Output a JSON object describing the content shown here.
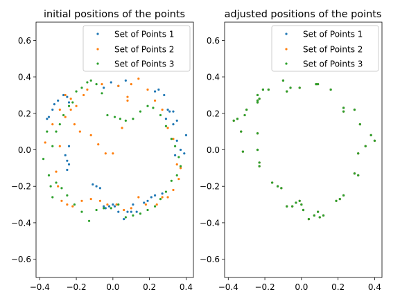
{
  "chart_data": [
    {
      "type": "scatter",
      "title": "initial positions of the points",
      "xlabel": "",
      "ylabel": "",
      "xlim": [
        -0.42,
        0.44
      ],
      "ylim": [
        -0.7,
        0.7
      ],
      "xticks": [
        "−0.4",
        "−0.2",
        "0.0",
        "0.2",
        "0.4"
      ],
      "yticks": [
        "−0.6",
        "−0.4",
        "−0.2",
        "0.0",
        "0.2",
        "0.4",
        "0.6"
      ],
      "xtick_values": [
        -0.4,
        -0.2,
        0.0,
        0.2,
        0.4
      ],
      "ytick_values": [
        -0.6,
        -0.4,
        -0.2,
        0.0,
        0.2,
        0.4,
        0.6
      ],
      "legend_position": "top-right",
      "series": [
        {
          "name": "Set of Points 1",
          "color": "#1f77b4",
          "x": [
            -0.36,
            -0.35,
            -0.33,
            -0.32,
            -0.3,
            -0.27,
            -0.25,
            -0.24,
            -0.26,
            -0.25,
            -0.24,
            -0.25,
            -0.24,
            -0.11,
            -0.09,
            -0.07,
            -0.05,
            -0.04,
            -0.02,
            0.0,
            0.01,
            0.03,
            0.06,
            0.08,
            0.1,
            0.11,
            0.13,
            0.17,
            0.19,
            0.21,
            0.23,
            0.27,
            0.29,
            0.31,
            0.33,
            0.35,
            0.37,
            0.39,
            0.4,
            0.3,
            0.33,
            0.35,
            0.34,
            0.28,
            0.25,
            0.23,
            -0.05,
            -0.01,
            0.03,
            0.07
          ],
          "y": [
            0.17,
            0.18,
            0.22,
            0.25,
            0.27,
            0.3,
            0.29,
            0.26,
            -0.03,
            -0.06,
            -0.08,
            -0.11,
            0.02,
            -0.19,
            -0.2,
            -0.21,
            -0.31,
            -0.32,
            -0.31,
            -0.3,
            -0.31,
            -0.34,
            -0.38,
            -0.34,
            -0.34,
            -0.3,
            -0.34,
            -0.29,
            -0.28,
            -0.26,
            -0.25,
            -0.24,
            0.17,
            0.21,
            0.21,
            0.16,
            0.0,
            -0.02,
            0.08,
            0.22,
            0.14,
            0.05,
            -0.03,
            0.3,
            0.33,
            0.32,
            0.34,
            0.37,
            0.35,
            0.38
          ]
        },
        {
          "name": "Set of Points 2",
          "color": "#ff7f0e",
          "x": [
            -0.37,
            -0.33,
            -0.29,
            -0.26,
            -0.23,
            -0.21,
            -0.18,
            -0.12,
            -0.08,
            -0.04,
            0.0,
            0.05,
            0.08,
            0.1,
            0.14,
            0.19,
            0.23,
            0.27,
            0.3,
            0.33,
            0.35,
            0.37,
            0.36,
            0.33,
            0.3,
            0.27,
            0.24,
            0.18,
            0.14,
            0.1,
            0.06,
            0.02,
            -0.03,
            -0.07,
            -0.12,
            -0.17,
            -0.22,
            -0.25,
            -0.28,
            -0.3,
            -0.31,
            -0.29,
            -0.26,
            -0.23,
            -0.2,
            -0.16,
            -0.14,
            -0.06,
            0.03,
            0.08
          ],
          "y": [
            0.04,
            0.14,
            0.22,
            0.3,
            0.28,
            0.14,
            0.1,
            0.08,
            0.03,
            -0.02,
            -0.02,
            0.12,
            0.29,
            0.36,
            0.39,
            0.33,
            0.27,
            0.22,
            0.12,
            0.06,
            -0.08,
            -0.1,
            -0.16,
            -0.22,
            -0.26,
            -0.26,
            -0.3,
            -0.3,
            -0.26,
            -0.32,
            -0.33,
            -0.3,
            -0.3,
            -0.28,
            -0.27,
            -0.28,
            -0.31,
            -0.3,
            -0.28,
            -0.2,
            -0.12,
            0.02,
            0.18,
            0.22,
            0.24,
            0.3,
            0.33,
            0.36,
            0.35,
            0.27
          ]
        },
        {
          "name": "Set of Points 3",
          "color": "#2ca02c",
          "x": [
            -0.38,
            -0.35,
            -0.33,
            -0.31,
            -0.29,
            -0.27,
            -0.24,
            -0.22,
            -0.2,
            -0.17,
            -0.14,
            -0.12,
            -0.09,
            -0.06,
            -0.03,
            0.01,
            0.04,
            0.07,
            0.11,
            0.15,
            0.19,
            0.22,
            0.26,
            0.29,
            0.32,
            0.34,
            0.36,
            0.37,
            0.35,
            0.32,
            0.29,
            0.26,
            0.23,
            0.19,
            0.15,
            0.11,
            0.07,
            0.03,
            -0.01,
            -0.05,
            -0.09,
            -0.13,
            -0.17,
            -0.21,
            -0.25,
            -0.28,
            -0.31,
            -0.34,
            -0.36,
            -0.33
          ],
          "y": [
            -0.05,
            -0.14,
            0.02,
            0.1,
            0.14,
            0.19,
            0.24,
            0.26,
            0.32,
            0.34,
            0.37,
            0.38,
            0.36,
            0.31,
            0.19,
            0.18,
            0.17,
            0.16,
            0.17,
            0.21,
            0.24,
            0.23,
            0.19,
            0.13,
            0.06,
            0.02,
            -0.04,
            -0.09,
            -0.14,
            -0.17,
            -0.23,
            -0.27,
            -0.31,
            -0.33,
            -0.35,
            -0.36,
            -0.37,
            -0.3,
            -0.32,
            -0.32,
            -0.33,
            -0.39,
            -0.34,
            -0.3,
            -0.25,
            -0.21,
            -0.18,
            -0.2,
            0.1,
            -0.26
          ]
        }
      ]
    },
    {
      "type": "scatter",
      "title": "adjusted positions of the points",
      "xlabel": "",
      "ylabel": "",
      "xlim": [
        -0.42,
        0.44
      ],
      "ylim": [
        -0.7,
        0.7
      ],
      "xticks": [
        "−0.4",
        "−0.2",
        "0.0",
        "0.2",
        "0.4"
      ],
      "yticks": [
        "−0.6",
        "−0.4",
        "−0.2",
        "0.0",
        "0.2",
        "0.4",
        "0.6"
      ],
      "xtick_values": [
        -0.4,
        -0.2,
        0.0,
        0.2,
        0.4
      ],
      "ytick_values": [
        -0.6,
        -0.4,
        -0.2,
        0.0,
        0.2,
        0.4,
        0.6
      ],
      "legend_position": "top-right",
      "series": [
        {
          "name": "Set of Points 1",
          "color": "#1f77b4",
          "x": [
            -0.37,
            -0.35,
            -0.31,
            -0.3,
            -0.24,
            -0.23,
            -0.24,
            -0.24,
            -0.24,
            -0.23,
            -0.16,
            -0.23,
            -0.11,
            -0.13,
            -0.08,
            -0.05,
            -0.03,
            -0.01,
            0.0,
            0.01,
            0.04,
            0.07,
            0.09,
            0.1,
            0.12,
            0.19,
            0.21,
            0.23,
            0.29,
            0.31,
            0.32,
            0.38,
            0.4,
            0.35,
            0.31,
            0.29,
            0.23,
            0.23,
            0.16,
            0.09,
            0.08,
            -0.01,
            -0.06,
            -0.08,
            -0.1,
            -0.18,
            -0.21,
            -0.24,
            -0.33,
            -0.32
          ],
          "y": [
            0.16,
            0.17,
            0.19,
            0.22,
            0.3,
            0.28,
            0.26,
            0.09,
            0.0,
            -0.07,
            -0.18,
            -0.09,
            -0.21,
            -0.2,
            -0.31,
            -0.31,
            -0.29,
            -0.28,
            -0.3,
            -0.33,
            -0.38,
            -0.36,
            -0.34,
            -0.37,
            -0.36,
            -0.28,
            -0.27,
            -0.25,
            -0.13,
            -0.14,
            0.14,
            0.08,
            0.05,
            0.02,
            -0.02,
            0.22,
            0.21,
            0.23,
            0.33,
            0.36,
            0.36,
            0.34,
            0.34,
            0.32,
            0.38,
            0.33,
            0.33,
            0.27,
            0.1,
            -0.01
          ]
        },
        {
          "name": "Set of Points 2",
          "color": "#ff7f0e",
          "x": [
            -0.37,
            -0.35,
            -0.31,
            -0.3,
            -0.24,
            -0.23,
            -0.24,
            -0.24,
            -0.24,
            -0.23,
            -0.16,
            -0.23,
            -0.11,
            -0.13,
            -0.08,
            -0.05,
            -0.03,
            -0.01,
            0.0,
            0.01,
            0.04,
            0.07,
            0.09,
            0.1,
            0.12,
            0.19,
            0.21,
            0.23,
            0.29,
            0.31,
            0.32,
            0.38,
            0.4,
            0.35,
            0.31,
            0.29,
            0.23,
            0.23,
            0.16,
            0.09,
            0.08,
            -0.01,
            -0.06,
            -0.08,
            -0.1,
            -0.18,
            -0.21,
            -0.24,
            -0.33,
            -0.32
          ],
          "y": [
            0.16,
            0.17,
            0.19,
            0.22,
            0.3,
            0.28,
            0.26,
            0.09,
            0.0,
            -0.07,
            -0.18,
            -0.09,
            -0.21,
            -0.2,
            -0.31,
            -0.31,
            -0.29,
            -0.28,
            -0.3,
            -0.33,
            -0.38,
            -0.36,
            -0.34,
            -0.37,
            -0.36,
            -0.28,
            -0.27,
            -0.25,
            -0.13,
            -0.14,
            0.14,
            0.08,
            0.05,
            0.02,
            -0.02,
            0.22,
            0.21,
            0.23,
            0.33,
            0.36,
            0.36,
            0.34,
            0.34,
            0.32,
            0.38,
            0.33,
            0.33,
            0.27,
            0.1,
            -0.01
          ]
        },
        {
          "name": "Set of Points 3",
          "color": "#2ca02c",
          "x": [
            -0.37,
            -0.35,
            -0.31,
            -0.3,
            -0.24,
            -0.23,
            -0.24,
            -0.24,
            -0.24,
            -0.23,
            -0.16,
            -0.23,
            -0.11,
            -0.13,
            -0.08,
            -0.05,
            -0.03,
            -0.01,
            0.0,
            0.01,
            0.04,
            0.07,
            0.09,
            0.1,
            0.12,
            0.19,
            0.21,
            0.23,
            0.29,
            0.31,
            0.32,
            0.38,
            0.4,
            0.35,
            0.31,
            0.29,
            0.23,
            0.23,
            0.16,
            0.09,
            0.08,
            -0.01,
            -0.06,
            -0.08,
            -0.1,
            -0.18,
            -0.21,
            -0.24,
            -0.33,
            -0.32
          ],
          "y": [
            0.16,
            0.17,
            0.19,
            0.22,
            0.3,
            0.28,
            0.26,
            0.09,
            0.0,
            -0.07,
            -0.18,
            -0.09,
            -0.21,
            -0.2,
            -0.31,
            -0.31,
            -0.29,
            -0.28,
            -0.3,
            -0.33,
            -0.38,
            -0.36,
            -0.34,
            -0.37,
            -0.36,
            -0.28,
            -0.27,
            -0.25,
            -0.13,
            -0.14,
            0.14,
            0.08,
            0.05,
            0.02,
            -0.02,
            0.22,
            0.21,
            0.23,
            0.33,
            0.36,
            0.36,
            0.34,
            0.34,
            0.32,
            0.38,
            0.33,
            0.33,
            0.27,
            0.1,
            -0.01
          ]
        }
      ]
    }
  ]
}
